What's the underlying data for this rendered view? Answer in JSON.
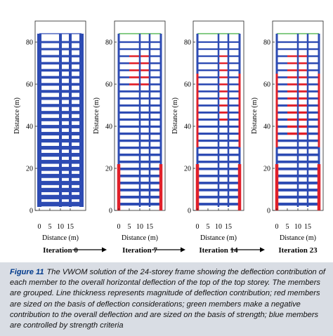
{
  "figure": {
    "panels": [
      {
        "iteration_label": "Iteration 0"
      },
      {
        "iteration_label": "Iteration 7"
      },
      {
        "iteration_label": "Iteration 14"
      },
      {
        "iteration_label": "Iteration 23"
      }
    ],
    "y_axis_label": "Distance (m)",
    "x_axis_label": "Distance (m)",
    "y_ticks": [
      "0",
      "20",
      "40",
      "60",
      "80"
    ],
    "x_ticks": [
      "0",
      "5",
      "10",
      "15"
    ],
    "colors": {
      "blue": "#2d4bb3",
      "red": "#e0202a",
      "green": "#3fae3f",
      "arrow": "#000000"
    }
  },
  "caption": {
    "label": "Figure 11",
    "text": "The VWOM solution of the 24-storey frame showing the deflection contribution of each member to the overall horizontal deflection of the top of the top storey. The members are grouped. Line thickness represents magnitude of deflection contribution; red members are sized on the basis of deflection considerations; green members make a negative contribution to the overall deflection and are sized on the basis of strength; blue members are controlled by strength criteria"
  }
}
